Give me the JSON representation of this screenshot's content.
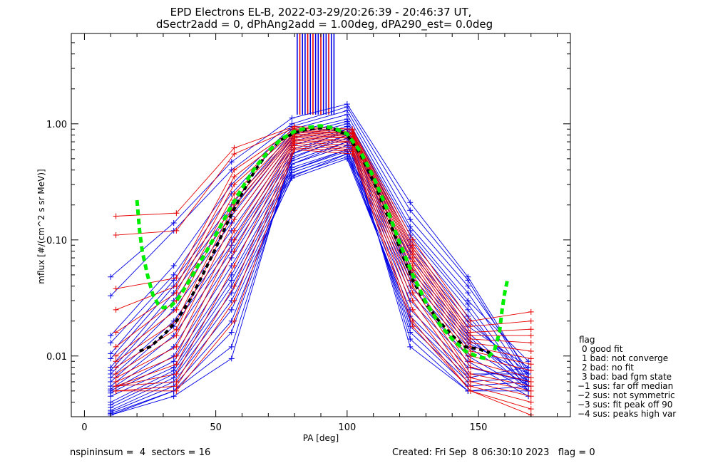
{
  "chart_data": {
    "type": "line",
    "title": "EPD Electrons EL-B, 2022-03-29/20:26:39 - 20:46:37 UT,",
    "subtitle": "dSectr2add = 0, dPhAng2add = 1.00deg, dPA290_est=   0.0deg",
    "xlabel": "PA [deg]",
    "ylabel": "mflux [#/(cm^2 s sr MeV)]",
    "xlim": [
      -5,
      185
    ],
    "ylim": [
      0.003,
      6
    ],
    "yscale": "log",
    "x_ticks": [
      {
        "value": 0,
        "label": "0"
      },
      {
        "value": 50,
        "label": "50"
      },
      {
        "value": 100,
        "label": "100"
      },
      {
        "value": 150,
        "label": "150"
      }
    ],
    "y_ticks": [
      {
        "value": 0.01,
        "label": "0.01"
      },
      {
        "value": 0.1,
        "label": "0.10"
      },
      {
        "value": 1.0,
        "label": "1.00"
      }
    ],
    "colors": {
      "blue": "#0000e6",
      "red": "#e60000",
      "green": "#00ee00",
      "black": "#000000"
    },
    "blue_pa": [
      10,
      34,
      56,
      79,
      100,
      124,
      146,
      169
    ],
    "blue_profiles": [
      [
        0.048,
        0.14,
        0.47,
        1.12,
        1.48,
        0.21,
        0.048,
        0.007
      ],
      [
        0.033,
        0.12,
        0.4,
        1.0,
        1.4,
        0.18,
        0.045,
        0.0065
      ],
      [
        0.015,
        0.06,
        0.3,
        0.95,
        1.3,
        0.15,
        0.04,
        0.0075
      ],
      [
        0.013,
        0.05,
        0.25,
        0.9,
        1.2,
        0.13,
        0.035,
        0.006
      ],
      [
        0.0105,
        0.045,
        0.2,
        0.85,
        1.1,
        0.12,
        0.03,
        0.009
      ],
      [
        0.0095,
        0.04,
        0.18,
        0.8,
        1.05,
        0.11,
        0.028,
        0.0055
      ],
      [
        0.008,
        0.035,
        0.16,
        0.75,
        1.0,
        0.1,
        0.025,
        0.005
      ],
      [
        0.0075,
        0.03,
        0.14,
        0.7,
        0.95,
        0.09,
        0.022,
        0.006
      ],
      [
        0.007,
        0.025,
        0.12,
        0.65,
        0.9,
        0.08,
        0.02,
        0.007
      ],
      [
        0.0065,
        0.02,
        0.1,
        0.6,
        0.85,
        0.07,
        0.018,
        0.008
      ],
      [
        0.006,
        0.018,
        0.09,
        0.55,
        0.8,
        0.06,
        0.016,
        0.0055
      ],
      [
        0.0055,
        0.015,
        0.08,
        0.52,
        0.75,
        0.055,
        0.015,
        0.005
      ],
      [
        0.0052,
        0.012,
        0.07,
        0.48,
        0.7,
        0.05,
        0.014,
        0.006
      ],
      [
        0.005,
        0.01,
        0.06,
        0.45,
        0.65,
        0.045,
        0.013,
        0.007
      ],
      [
        0.0048,
        0.009,
        0.05,
        0.42,
        0.6,
        0.04,
        0.012,
        0.0055
      ],
      [
        0.0045,
        0.008,
        0.045,
        0.4,
        0.58,
        0.035,
        0.01,
        0.005
      ],
      [
        0.004,
        0.0075,
        0.04,
        0.38,
        0.55,
        0.03,
        0.009,
        0.0045
      ],
      [
        0.0038,
        0.007,
        0.035,
        0.36,
        0.52,
        0.025,
        0.008,
        0.006
      ],
      [
        0.0036,
        0.0065,
        0.03,
        0.34,
        0.5,
        0.022,
        0.007,
        0.007
      ],
      [
        0.0034,
        0.006,
        0.025,
        0.35,
        0.55,
        0.02,
        0.0065,
        0.008
      ],
      [
        0.0033,
        0.0055,
        0.02,
        0.4,
        0.6,
        0.018,
        0.006,
        0.0065
      ],
      [
        0.0032,
        0.005,
        0.016,
        0.45,
        0.7,
        0.016,
        0.0055,
        0.006
      ],
      [
        0.0031,
        0.005,
        0.012,
        0.5,
        0.8,
        0.014,
        0.005,
        0.0055
      ],
      [
        0.0031,
        0.0045,
        0.0095,
        0.55,
        0.9,
        0.012,
        0.005,
        0.005
      ]
    ],
    "red_pa": [
      12,
      35,
      57,
      80,
      102,
      125,
      147,
      170
    ],
    "red_profiles": [
      [
        0.16,
        0.17,
        0.62,
        0.95,
        0.9,
        0.1,
        0.02,
        0.024
      ],
      [
        0.11,
        0.12,
        0.55,
        0.92,
        0.88,
        0.09,
        0.018,
        0.02
      ],
      [
        0.038,
        0.047,
        0.4,
        0.9,
        0.85,
        0.085,
        0.016,
        0.017
      ],
      [
        0.025,
        0.04,
        0.35,
        0.88,
        0.83,
        0.08,
        0.015,
        0.015
      ],
      [
        0.016,
        0.035,
        0.3,
        0.86,
        0.82,
        0.075,
        0.014,
        0.013
      ],
      [
        0.012,
        0.03,
        0.25,
        0.84,
        0.8,
        0.07,
        0.013,
        0.011
      ],
      [
        0.01,
        0.025,
        0.22,
        0.82,
        0.78,
        0.065,
        0.012,
        0.0095
      ],
      [
        0.009,
        0.02,
        0.2,
        0.8,
        0.76,
        0.06,
        0.011,
        0.0085
      ],
      [
        0.008,
        0.017,
        0.18,
        0.78,
        0.75,
        0.055,
        0.01,
        0.0075
      ],
      [
        0.007,
        0.015,
        0.15,
        0.76,
        0.72,
        0.05,
        0.009,
        0.0065
      ],
      [
        0.0065,
        0.012,
        0.12,
        0.74,
        0.7,
        0.045,
        0.008,
        0.006
      ],
      [
        0.006,
        0.01,
        0.1,
        0.72,
        0.68,
        0.04,
        0.007,
        0.0055
      ],
      [
        0.0055,
        0.0085,
        0.08,
        0.7,
        0.65,
        0.035,
        0.0065,
        0.005
      ],
      [
        0.0055,
        0.007,
        0.06,
        0.68,
        0.62,
        0.03,
        0.006,
        0.0045
      ],
      [
        0.0055,
        0.006,
        0.04,
        0.65,
        0.6,
        0.025,
        0.0055,
        0.004
      ],
      [
        0.005,
        0.0055,
        0.03,
        0.62,
        0.58,
        0.02,
        0.005,
        0.0035
      ],
      [
        0.005,
        0.005,
        0.02,
        0.6,
        0.55,
        0.018,
        0.005,
        0.0031
      ]
    ],
    "median_fit": [
      {
        "x": 21,
        "y": 0.011
      },
      {
        "x": 25,
        "y": 0.012
      },
      {
        "x": 30,
        "y": 0.015
      },
      {
        "x": 35,
        "y": 0.02
      },
      {
        "x": 40,
        "y": 0.03
      },
      {
        "x": 45,
        "y": 0.05
      },
      {
        "x": 50,
        "y": 0.085
      },
      {
        "x": 55,
        "y": 0.15
      },
      {
        "x": 60,
        "y": 0.25
      },
      {
        "x": 65,
        "y": 0.4
      },
      {
        "x": 70,
        "y": 0.57
      },
      {
        "x": 75,
        "y": 0.73
      },
      {
        "x": 80,
        "y": 0.84
      },
      {
        "x": 85,
        "y": 0.9
      },
      {
        "x": 90,
        "y": 0.92
      },
      {
        "x": 95,
        "y": 0.9
      },
      {
        "x": 100,
        "y": 0.8
      },
      {
        "x": 105,
        "y": 0.55
      },
      {
        "x": 110,
        "y": 0.32
      },
      {
        "x": 115,
        "y": 0.17
      },
      {
        "x": 120,
        "y": 0.085
      },
      {
        "x": 125,
        "y": 0.045
      },
      {
        "x": 130,
        "y": 0.028
      },
      {
        "x": 135,
        "y": 0.02
      },
      {
        "x": 140,
        "y": 0.015
      },
      {
        "x": 145,
        "y": 0.012
      },
      {
        "x": 150,
        "y": 0.0115
      },
      {
        "x": 155,
        "y": 0.0105
      }
    ],
    "green_fit": [
      {
        "x": 20,
        "y": 0.22
      },
      {
        "x": 21,
        "y": 0.12
      },
      {
        "x": 22,
        "y": 0.08
      },
      {
        "x": 24,
        "y": 0.05
      },
      {
        "x": 26,
        "y": 0.034
      },
      {
        "x": 28,
        "y": 0.028
      },
      {
        "x": 30,
        "y": 0.026
      },
      {
        "x": 33,
        "y": 0.027
      },
      {
        "x": 36,
        "y": 0.032
      },
      {
        "x": 40,
        "y": 0.045
      },
      {
        "x": 45,
        "y": 0.07
      },
      {
        "x": 50,
        "y": 0.11
      },
      {
        "x": 55,
        "y": 0.18
      },
      {
        "x": 60,
        "y": 0.28
      },
      {
        "x": 65,
        "y": 0.42
      },
      {
        "x": 70,
        "y": 0.58
      },
      {
        "x": 75,
        "y": 0.74
      },
      {
        "x": 80,
        "y": 0.86
      },
      {
        "x": 85,
        "y": 0.93
      },
      {
        "x": 90,
        "y": 0.96
      },
      {
        "x": 95,
        "y": 0.92
      },
      {
        "x": 100,
        "y": 0.82
      },
      {
        "x": 105,
        "y": 0.58
      },
      {
        "x": 110,
        "y": 0.35
      },
      {
        "x": 115,
        "y": 0.19
      },
      {
        "x": 120,
        "y": 0.095
      },
      {
        "x": 125,
        "y": 0.05
      },
      {
        "x": 130,
        "y": 0.029
      },
      {
        "x": 135,
        "y": 0.019
      },
      {
        "x": 140,
        "y": 0.014
      },
      {
        "x": 145,
        "y": 0.011
      },
      {
        "x": 150,
        "y": 0.0098
      },
      {
        "x": 153,
        "y": 0.0095
      },
      {
        "x": 156,
        "y": 0.011
      },
      {
        "x": 158,
        "y": 0.016
      },
      {
        "x": 159,
        "y": 0.025
      },
      {
        "x": 160,
        "y": 0.035
      },
      {
        "x": 161,
        "y": 0.045
      }
    ],
    "peak_markers": [
      {
        "x": 81,
        "color": "blue"
      },
      {
        "x": 82,
        "color": "red"
      },
      {
        "x": 83,
        "color": "blue"
      },
      {
        "x": 84,
        "color": "blue"
      },
      {
        "x": 85,
        "color": "red"
      },
      {
        "x": 86,
        "color": "blue"
      },
      {
        "x": 87,
        "color": "red"
      },
      {
        "x": 88,
        "color": "blue"
      },
      {
        "x": 89,
        "color": "blue"
      },
      {
        "x": 90,
        "color": "red"
      },
      {
        "x": 91,
        "color": "blue"
      },
      {
        "x": 92,
        "color": "blue"
      },
      {
        "x": 93,
        "color": "red"
      },
      {
        "x": 94,
        "color": "blue"
      },
      {
        "x": 95,
        "color": "blue"
      }
    ],
    "peak_marker_range": [
      1.2,
      6
    ]
  },
  "legend": {
    "title": "flag",
    "items": [
      "0 good fit",
      "1 bad: not converge",
      "2 bad: no fit",
      "3 bad: bad fgm state",
      "−1 sus: far off median",
      "−2 sus: not symmetric",
      "−3 sus: fit peak off 90",
      "−4 sus: peaks high var"
    ]
  },
  "footer": {
    "left": "nspininsum =  4  sectors = 16",
    "right": "Created: Fri Sep  8 06:30:10 2023   flag = 0"
  }
}
